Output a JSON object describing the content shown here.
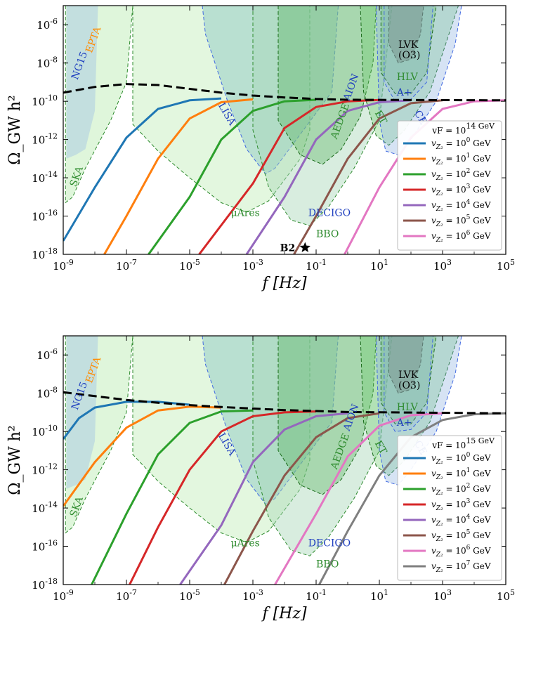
{
  "chart_data": [
    {
      "type": "line",
      "xlabel": "f [Hz]",
      "ylabel": "Ω_GW h²",
      "xscale": "log",
      "yscale": "log",
      "xlim": [
        1e-09,
        100000.0
      ],
      "ylim": [
        1e-18,
        1e-05
      ],
      "x_tick_labels": [
        "10^-9",
        "10^-7",
        "10^-5",
        "10^-3",
        "10^-1",
        "10^1",
        "10^3",
        "10^5"
      ],
      "y_tick_labels": [
        "10^-18",
        "10^-16",
        "10^-14",
        "10^-12",
        "10^-10",
        "10^-8",
        "10^-6"
      ],
      "legend_title": "v_F = 10^14 GeV",
      "legend_position": "lower-right",
      "series": [
        {
          "name": "v_Z2 = 10^0 GeV",
          "color": "#1f77b4",
          "logx": [
            -9,
            -8,
            -7,
            -6,
            -5,
            -4
          ],
          "logy": [
            -17.3,
            -14.5,
            -11.9,
            -10.4,
            -9.95,
            -9.85
          ]
        },
        {
          "name": "v_Z2 = 10^1 GeV",
          "color": "#ff7f0e",
          "logx": [
            -7.7,
            -7,
            -6,
            -5,
            -4,
            -3
          ],
          "logy": [
            -18,
            -16.0,
            -13.0,
            -10.9,
            -10.05,
            -9.9
          ]
        },
        {
          "name": "v_Z2 = 10^2 GeV",
          "color": "#2ca02c",
          "logx": [
            -6.3,
            -5,
            -4,
            -3,
            -2,
            -1
          ],
          "logy": [
            -18,
            -15.0,
            -12.0,
            -10.5,
            -10.0,
            -9.92
          ]
        },
        {
          "name": "v_Z2 = 10^3 GeV",
          "color": "#d62728",
          "logx": [
            -4.7,
            -3,
            -2,
            -1,
            0,
            1
          ],
          "logy": [
            -18,
            -14.3,
            -11.4,
            -10.3,
            -10.0,
            -9.93
          ]
        },
        {
          "name": "v_Z2 = 10^4 GeV",
          "color": "#9467bd",
          "logx": [
            -3.2,
            -2,
            -1,
            0,
            1,
            2
          ],
          "logy": [
            -18,
            -15.0,
            -12.0,
            -10.5,
            -10.05,
            -9.95
          ]
        },
        {
          "name": "v_Z2 = 10^5 GeV",
          "color": "#8c564b",
          "logx": [
            -1.7,
            -1,
            0,
            1,
            2,
            3
          ],
          "logy": [
            -18,
            -16.0,
            -13.0,
            -10.9,
            -10.1,
            -9.95
          ]
        },
        {
          "name": "v_Z2 = 10^6 GeV",
          "color": "#e377c2",
          "logx": [
            -0.1,
            1,
            2,
            3,
            4,
            5
          ],
          "logy": [
            -18,
            -14.5,
            -11.9,
            -10.4,
            -10.0,
            -9.95
          ]
        }
      ],
      "envelope": {
        "style": "black-dashed",
        "logx": [
          -9,
          -8,
          -7,
          -6,
          -5,
          -4,
          -3,
          -2,
          -1,
          0,
          5
        ],
        "logy": [
          -9.55,
          -9.25,
          -9.1,
          -9.15,
          -9.35,
          -9.55,
          -9.7,
          -9.8,
          -9.88,
          -9.92,
          -9.95
        ]
      },
      "benchmark": {
        "label": "B2",
        "logx": -1.35,
        "logy": -17.65
      },
      "detectors": [
        "SKA",
        "NG15",
        "EPTA",
        "LISA",
        "μAres",
        "DECIGO",
        "BBO",
        "AEDGE",
        "AION",
        "ET",
        "CE",
        "LVK",
        "(O3)",
        "HLV",
        "A+"
      ]
    },
    {
      "type": "line",
      "xlabel": "f [Hz]",
      "ylabel": "Ω_GW h²",
      "xscale": "log",
      "yscale": "log",
      "xlim": [
        1e-09,
        100000.0
      ],
      "ylim": [
        1e-18,
        1e-05
      ],
      "x_tick_labels": [
        "10^-9",
        "10^-7",
        "10^-5",
        "10^-3",
        "10^-1",
        "10^1",
        "10^3",
        "10^5"
      ],
      "y_tick_labels": [
        "10^-18",
        "10^-16",
        "10^-14",
        "10^-12",
        "10^-10",
        "10^-8",
        "10^-6"
      ],
      "legend_title": "v_F = 10^15 GeV",
      "legend_position": "lower-right",
      "series": [
        {
          "name": "v_Z2 = 10^0 GeV",
          "color": "#1f77b4",
          "logx": [
            -9,
            -8.5,
            -8,
            -7,
            -6,
            -5
          ],
          "logy": [
            -10.4,
            -9.3,
            -8.75,
            -8.45,
            -8.45,
            -8.6
          ]
        },
        {
          "name": "v_Z2 = 10^1 GeV",
          "color": "#ff7f0e",
          "logx": [
            -9,
            -8,
            -7,
            -6,
            -5,
            -4
          ],
          "logy": [
            -13.9,
            -11.6,
            -9.8,
            -8.9,
            -8.7,
            -8.75
          ]
        },
        {
          "name": "v_Z2 = 10^2 GeV",
          "color": "#2ca02c",
          "logx": [
            -8.1,
            -7,
            -6,
            -5,
            -4,
            -3
          ],
          "logy": [
            -18,
            -14.3,
            -11.2,
            -9.55,
            -8.95,
            -8.9
          ]
        },
        {
          "name": "v_Z2 = 10^3 GeV",
          "color": "#d62728",
          "logx": [
            -6.9,
            -6,
            -5,
            -4,
            -3,
            -2,
            -1
          ],
          "logy": [
            -18,
            -15.0,
            -12.0,
            -10.0,
            -9.2,
            -9.0,
            -8.95
          ]
        },
        {
          "name": "v_Z2 = 10^4 GeV",
          "color": "#9467bd",
          "logx": [
            -5.3,
            -4,
            -3,
            -2,
            -1,
            0
          ],
          "logy": [
            -18,
            -14.9,
            -11.6,
            -9.9,
            -9.2,
            -9.05
          ]
        },
        {
          "name": "v_Z2 = 10^5 GeV",
          "color": "#8c564b",
          "logx": [
            -3.9,
            -3,
            -2,
            -1,
            0,
            1
          ],
          "logy": [
            -18,
            -15.2,
            -12.3,
            -10.3,
            -9.3,
            -9.05
          ]
        },
        {
          "name": "v_Z2 = 10^6 GeV",
          "color": "#e377c2",
          "logx": [
            -2.3,
            -1,
            0,
            1,
            2,
            3
          ],
          "logy": [
            -18,
            -14.3,
            -11.3,
            -9.7,
            -9.15,
            -9.05
          ]
        },
        {
          "name": "v_Z2 = 10^7 GeV",
          "color": "#7f7f7f",
          "logx": [
            -0.9,
            0,
            1,
            2,
            3,
            4,
            5
          ],
          "logy": [
            -18,
            -15.2,
            -12.3,
            -10.3,
            -9.4,
            -9.1,
            -9.05
          ]
        }
      ],
      "envelope": {
        "style": "black-dashed",
        "logx": [
          -9,
          -8,
          -7,
          -6,
          -5,
          -4,
          -3,
          -2,
          -1,
          0,
          5
        ],
        "logy": [
          -7.95,
          -8.15,
          -8.35,
          -8.5,
          -8.62,
          -8.72,
          -8.8,
          -8.88,
          -8.93,
          -8.98,
          -9.05
        ]
      },
      "detectors": [
        "SKA",
        "NG15",
        "EPTA",
        "LISA",
        "μAres",
        "DECIGO",
        "BBO",
        "AEDGE",
        "AION",
        "ET",
        "CE",
        "LVK",
        "(O3)",
        "HLV",
        "A+"
      ]
    }
  ]
}
